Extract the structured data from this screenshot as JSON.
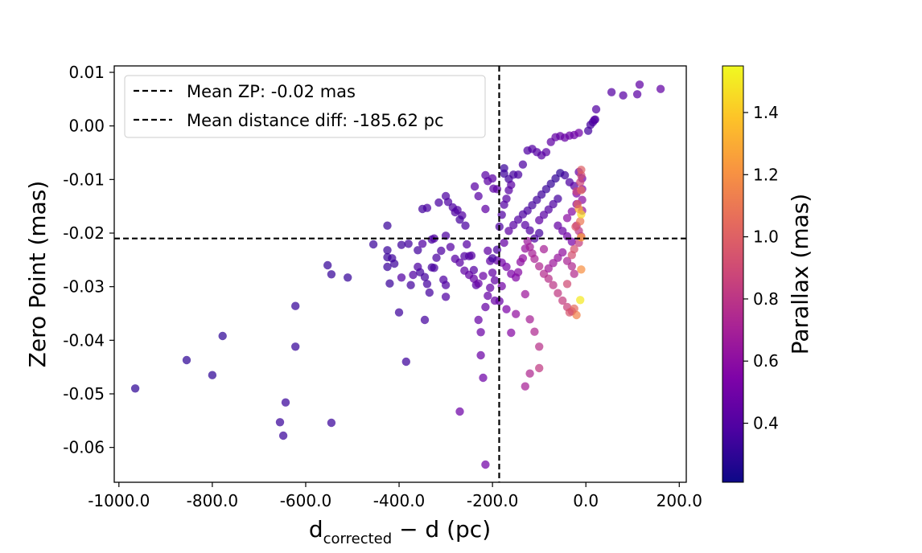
{
  "chart_data": {
    "type": "scatter",
    "title": "",
    "xlabel_main": "d",
    "xlabel_sub": "corrected",
    "xlabel_rest": " − d (pc)",
    "ylabel": "Zero Point (mas)",
    "xlim": [
      -1010,
      215
    ],
    "ylim": [
      -0.0665,
      0.0112
    ],
    "x_ticks": [
      -1000,
      -800,
      -600,
      -400,
      -200,
      0,
      200
    ],
    "x_tick_labels": [
      "-1000.0",
      "-800.0",
      "-600.0",
      "-400.0",
      "-200.0",
      "0.0",
      "200.0"
    ],
    "y_ticks": [
      0.01,
      0.0,
      -0.01,
      -0.02,
      -0.03,
      -0.04,
      -0.05,
      -0.06
    ],
    "y_tick_labels": [
      "0.01",
      "0.00",
      "-0.01",
      "-0.02",
      "-0.03",
      "-0.04",
      "-0.05",
      "-0.06"
    ],
    "colorbar": {
      "label": "Parallax (mas)",
      "range": [
        0.21,
        1.55
      ],
      "ticks": [
        0.4,
        0.6,
        0.8,
        1.0,
        1.2,
        1.4
      ],
      "tick_labels": [
        "0.4",
        "0.6",
        "0.8",
        "1.0",
        "1.2",
        "1.4"
      ],
      "colormap": "plasma"
    },
    "reference_lines": [
      {
        "orientation": "horizontal",
        "value": -0.021,
        "label": "Mean ZP: -0.02 mas"
      },
      {
        "orientation": "vertical",
        "value": -185.62,
        "label": "Mean distance diff: -185.62 pc"
      }
    ],
    "legend_location": "upper-left",
    "points": [
      [
        -965,
        -0.049,
        0.3
      ],
      [
        -855,
        -0.0437,
        0.3
      ],
      [
        -800,
        -0.0465,
        0.3
      ],
      [
        -778,
        -0.0392,
        0.3
      ],
      [
        -655,
        -0.0553,
        0.33
      ],
      [
        -648,
        -0.0578,
        0.33
      ],
      [
        -643,
        -0.0516,
        0.33
      ],
      [
        -545,
        -0.0554,
        0.33
      ],
      [
        -622,
        -0.0336,
        0.32
      ],
      [
        -622,
        -0.0412,
        0.32
      ],
      [
        -553,
        -0.026,
        0.32
      ],
      [
        -545,
        -0.0277,
        0.32
      ],
      [
        -510,
        -0.0283,
        0.32
      ],
      [
        -455,
        -0.0221,
        0.33
      ],
      [
        -425,
        -0.0186,
        0.33
      ],
      [
        -425,
        -0.0232,
        0.33
      ],
      [
        -425,
        -0.0245,
        0.33
      ],
      [
        -415,
        -0.0247,
        0.34
      ],
      [
        -425,
        -0.0263,
        0.33
      ],
      [
        -410,
        -0.0257,
        0.34
      ],
      [
        -420,
        -0.0294,
        0.33
      ],
      [
        -400,
        -0.0348,
        0.34
      ],
      [
        -385,
        -0.044,
        0.34
      ],
      [
        -395,
        -0.0222,
        0.34
      ],
      [
        -380,
        -0.022,
        0.35
      ],
      [
        -360,
        -0.0232,
        0.35
      ],
      [
        -375,
        -0.0297,
        0.35
      ],
      [
        -350,
        -0.0155,
        0.35
      ],
      [
        -355,
        -0.0273,
        0.35
      ],
      [
        -345,
        -0.0282,
        0.36
      ],
      [
        -340,
        -0.0295,
        0.36
      ],
      [
        -335,
        -0.0311,
        0.36
      ],
      [
        -345,
        -0.0362,
        0.36
      ],
      [
        -330,
        -0.0264,
        0.36
      ],
      [
        -325,
        -0.0265,
        0.37
      ],
      [
        -320,
        -0.0246,
        0.37
      ],
      [
        -330,
        -0.0212,
        0.37
      ],
      [
        -340,
        -0.0153,
        0.37
      ],
      [
        -315,
        -0.0143,
        0.37
      ],
      [
        -300,
        -0.0131,
        0.38
      ],
      [
        -295,
        -0.0142,
        0.38
      ],
      [
        -285,
        -0.0152,
        0.38
      ],
      [
        -280,
        -0.0161,
        0.38
      ],
      [
        -310,
        -0.0233,
        0.38
      ],
      [
        -305,
        -0.0287,
        0.39
      ],
      [
        -300,
        -0.0297,
        0.39
      ],
      [
        -300,
        -0.0319,
        0.39
      ],
      [
        -275,
        -0.0157,
        0.39
      ],
      [
        -265,
        -0.0167,
        0.4
      ],
      [
        -260,
        -0.0243,
        0.4
      ],
      [
        -250,
        -0.0243,
        0.4
      ],
      [
        -255,
        -0.0221,
        0.41
      ],
      [
        -245,
        -0.0242,
        0.41
      ],
      [
        -240,
        -0.0269,
        0.41
      ],
      [
        -235,
        -0.0297,
        0.42
      ],
      [
        -238,
        -0.0113,
        0.42
      ],
      [
        -230,
        -0.0131,
        0.42
      ],
      [
        -215,
        -0.0092,
        0.42
      ],
      [
        -210,
        -0.0103,
        0.43
      ],
      [
        -200,
        -0.0098,
        0.43
      ],
      [
        -198,
        -0.0117,
        0.43
      ],
      [
        -190,
        -0.0118,
        0.44
      ],
      [
        -215,
        -0.0155,
        0.44
      ],
      [
        -210,
        -0.0233,
        0.44
      ],
      [
        -205,
        -0.0252,
        0.44
      ],
      [
        -200,
        -0.0274,
        0.45
      ],
      [
        -195,
        -0.0288,
        0.45
      ],
      [
        -190,
        -0.0251,
        0.45
      ],
      [
        -215,
        -0.0338,
        0.46
      ],
      [
        -210,
        -0.0317,
        0.46
      ],
      [
        -205,
        -0.0302,
        0.46
      ],
      [
        -195,
        -0.0326,
        0.47
      ],
      [
        -185,
        -0.0327,
        0.47
      ],
      [
        -230,
        -0.0362,
        0.47
      ],
      [
        -225,
        -0.0385,
        0.48
      ],
      [
        -225,
        -0.0428,
        0.48
      ],
      [
        -220,
        -0.047,
        0.49
      ],
      [
        -270,
        -0.0533,
        0.49
      ],
      [
        -215,
        -0.0632,
        0.5
      ],
      [
        -175,
        -0.0079,
        0.33
      ],
      [
        -175,
        -0.0089,
        0.34
      ],
      [
        -165,
        -0.0099,
        0.35
      ],
      [
        -155,
        -0.0091,
        0.36
      ],
      [
        -145,
        -0.0091,
        0.37
      ],
      [
        -135,
        -0.0072,
        0.38
      ],
      [
        -125,
        -0.0046,
        0.39
      ],
      [
        -115,
        -0.0043,
        0.4
      ],
      [
        -105,
        -0.0049,
        0.41
      ],
      [
        -95,
        -0.0055,
        0.42
      ],
      [
        -85,
        -0.0049,
        0.43
      ],
      [
        -75,
        -0.003,
        0.44
      ],
      [
        -65,
        -0.0021,
        0.45
      ],
      [
        -55,
        -0.0019,
        0.46
      ],
      [
        -45,
        -0.0022,
        0.47
      ],
      [
        -35,
        -0.0018,
        0.48
      ],
      [
        -25,
        -0.0017,
        0.49
      ],
      [
        -15,
        -0.0013,
        0.5
      ],
      [
        5,
        -0.0009,
        0.35
      ],
      [
        10,
        0.0002,
        0.36
      ],
      [
        15,
        0.0007,
        0.37
      ],
      [
        18,
        0.0011,
        0.38
      ],
      [
        20,
        0.0012,
        0.39
      ],
      [
        22,
        0.0031,
        0.4
      ],
      [
        55,
        0.0063,
        0.41
      ],
      [
        80,
        0.0057,
        0.42
      ],
      [
        110,
        0.0059,
        0.43
      ],
      [
        115,
        0.0077,
        0.44
      ],
      [
        160,
        0.0069,
        0.45
      ],
      [
        -180,
        -0.0255,
        0.5
      ],
      [
        -170,
        -0.0263,
        0.52
      ],
      [
        -160,
        -0.0276,
        0.54
      ],
      [
        -150,
        -0.0283,
        0.56
      ],
      [
        -145,
        -0.0273,
        0.58
      ],
      [
        -140,
        -0.0254,
        0.6
      ],
      [
        -135,
        -0.0247,
        0.62
      ],
      [
        -130,
        -0.0229,
        0.64
      ],
      [
        -125,
        -0.0215,
        0.66
      ],
      [
        -120,
        -0.0226,
        0.68
      ],
      [
        -115,
        -0.0238,
        0.7
      ],
      [
        -110,
        -0.0248,
        0.72
      ],
      [
        -100,
        -0.0262,
        0.74
      ],
      [
        -90,
        -0.0276,
        0.76
      ],
      [
        -80,
        -0.0285,
        0.78
      ],
      [
        -70,
        -0.0297,
        0.8
      ],
      [
        -60,
        -0.0312,
        0.82
      ],
      [
        -50,
        -0.0326,
        0.84
      ],
      [
        -40,
        -0.0338,
        0.86
      ],
      [
        -30,
        -0.0346,
        0.88
      ],
      [
        -130,
        -0.0314,
        0.66
      ],
      [
        -120,
        -0.0361,
        0.7
      ],
      [
        -110,
        -0.0384,
        0.74
      ],
      [
        -100,
        -0.0412,
        0.78
      ],
      [
        -100,
        -0.0452,
        0.82
      ],
      [
        -120,
        -0.0462,
        0.74
      ],
      [
        -130,
        -0.0486,
        0.7
      ],
      [
        -150,
        -0.0351,
        0.62
      ],
      [
        -160,
        -0.0386,
        0.58
      ],
      [
        -170,
        -0.0342,
        0.54
      ],
      [
        -180,
        -0.0299,
        0.5
      ],
      [
        -175,
        -0.0218,
        0.46
      ],
      [
        -165,
        -0.0196,
        0.44
      ],
      [
        -155,
        -0.0185,
        0.42
      ],
      [
        -145,
        -0.0175,
        0.4
      ],
      [
        -135,
        -0.0165,
        0.38
      ],
      [
        -125,
        -0.0158,
        0.37
      ],
      [
        -115,
        -0.0148,
        0.36
      ],
      [
        -105,
        -0.0138,
        0.35
      ],
      [
        -95,
        -0.0128,
        0.34
      ],
      [
        -85,
        -0.0118,
        0.33
      ],
      [
        -75,
        -0.0108,
        0.32
      ],
      [
        -65,
        -0.0098,
        0.31
      ],
      [
        -55,
        -0.0088,
        0.3
      ],
      [
        -45,
        -0.0092,
        0.34
      ],
      [
        -35,
        -0.0105,
        0.38
      ],
      [
        -25,
        -0.0112,
        0.42
      ],
      [
        -15,
        -0.0086,
        0.46
      ],
      [
        -8,
        -0.0098,
        0.5
      ],
      [
        -8,
        -0.0118,
        0.55
      ],
      [
        -8,
        -0.0138,
        0.6
      ],
      [
        -8,
        -0.0158,
        0.65
      ],
      [
        -60,
        -0.0136,
        0.36
      ],
      [
        -70,
        -0.0146,
        0.38
      ],
      [
        -80,
        -0.0156,
        0.4
      ],
      [
        -90,
        -0.0166,
        0.42
      ],
      [
        -100,
        -0.0176,
        0.44
      ],
      [
        -60,
        -0.0186,
        0.46
      ],
      [
        -50,
        -0.0196,
        0.48
      ],
      [
        -40,
        -0.0206,
        0.5
      ],
      [
        -30,
        -0.0216,
        0.52
      ],
      [
        -20,
        -0.0126,
        0.54
      ],
      [
        -20,
        -0.0146,
        0.56
      ],
      [
        -30,
        -0.016,
        0.58
      ],
      [
        -40,
        -0.0172,
        0.6
      ],
      [
        -50,
        -0.0236,
        0.62
      ],
      [
        -60,
        -0.0246,
        0.64
      ],
      [
        -70,
        -0.0256,
        0.66
      ],
      [
        -80,
        -0.0266,
        0.68
      ],
      [
        -90,
        -0.023,
        0.7
      ],
      [
        -40,
        -0.0252,
        0.72
      ],
      [
        -30,
        -0.0262,
        0.74
      ],
      [
        -25,
        -0.0276,
        0.76
      ],
      [
        -20,
        -0.0186,
        0.78
      ],
      [
        -15,
        -0.0196,
        0.8
      ],
      [
        -10,
        -0.0206,
        0.82
      ],
      [
        -15,
        -0.0218,
        0.84
      ],
      [
        -20,
        -0.0122,
        0.86
      ],
      [
        -12,
        -0.0105,
        0.88
      ],
      [
        -10,
        -0.0092,
        0.9
      ],
      [
        -10,
        -0.0082,
        1.0
      ],
      [
        -10,
        -0.012,
        1.05
      ],
      [
        -12,
        -0.0178,
        1.1
      ],
      [
        -10,
        -0.0268,
        1.2
      ],
      [
        -10,
        -0.0208,
        1.25
      ],
      [
        -12,
        -0.0325,
        1.5
      ],
      [
        -10,
        -0.0165,
        1.45
      ],
      [
        -15,
        -0.0155,
        1.3
      ],
      [
        -20,
        -0.0353,
        1.15
      ],
      [
        -25,
        -0.0341,
        1.05
      ],
      [
        -35,
        -0.0348,
        0.95
      ],
      [
        -40,
        -0.0295,
        0.9
      ],
      [
        -30,
        -0.0241,
        0.92
      ],
      [
        -25,
        -0.023,
        0.94
      ],
      [
        -22,
        -0.0188,
        0.96
      ],
      [
        -18,
        -0.0146,
        0.98
      ],
      [
        -200,
        -0.0247,
        0.36
      ],
      [
        -190,
        -0.0231,
        0.37
      ],
      [
        -185,
        -0.0188,
        0.38
      ],
      [
        -180,
        -0.0166,
        0.39
      ],
      [
        -175,
        -0.0147,
        0.4
      ],
      [
        -170,
        -0.0136,
        0.41
      ],
      [
        -165,
        -0.012,
        0.42
      ],
      [
        -160,
        -0.011,
        0.43
      ],
      [
        -270,
        -0.0175,
        0.36
      ],
      [
        -258,
        -0.0186,
        0.37
      ],
      [
        -300,
        -0.0205,
        0.38
      ],
      [
        -325,
        -0.021,
        0.39
      ],
      [
        -350,
        -0.022,
        0.4
      ],
      [
        -360,
        -0.0263,
        0.38
      ],
      [
        -370,
        -0.0278,
        0.39
      ],
      [
        -395,
        -0.0283,
        0.4
      ],
      [
        -290,
        -0.0226,
        0.41
      ],
      [
        -280,
        -0.0248,
        0.42
      ],
      [
        -270,
        -0.0255,
        0.43
      ],
      [
        -260,
        -0.027,
        0.44
      ],
      [
        -250,
        -0.0278,
        0.45
      ],
      [
        -240,
        -0.0285,
        0.46
      ],
      [
        -230,
        -0.0294,
        0.47
      ],
      [
        -220,
        -0.028,
        0.48
      ],
      [
        -100,
        -0.02,
        0.36
      ],
      [
        -110,
        -0.021,
        0.38
      ],
      [
        -120,
        -0.0195,
        0.4
      ],
      [
        -130,
        -0.0185,
        0.42
      ]
    ]
  }
}
